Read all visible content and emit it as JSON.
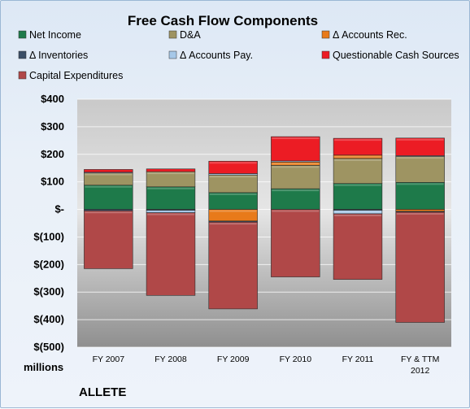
{
  "chart_data": {
    "type": "bar",
    "stacked": true,
    "title": "Free Cash Flow Components",
    "company": "ALLETE",
    "units_label": "millions",
    "categories": [
      "FY 2007",
      "FY 2008",
      "FY 2009",
      "FY 2010",
      "FY 2011",
      "FY & TTM 2012"
    ],
    "ylim": [
      -500,
      400
    ],
    "yticks": [
      400,
      300,
      200,
      100,
      0,
      -100,
      -200,
      -300,
      -400,
      -500
    ],
    "ytick_labels": [
      "$400",
      "$300",
      "$200",
      "$100",
      "$-",
      "$(100)",
      "$(200)",
      "$(300)",
      "$(400)",
      "$(500)"
    ],
    "grid": true,
    "legend_position": "top",
    "series": [
      {
        "name": "Net Income",
        "color": "#1e7a4a",
        "values": [
          88,
          82,
          61,
          75,
          94,
          98
        ]
      },
      {
        "name": "D&A",
        "color": "#9e9462",
        "values": [
          45,
          55,
          64,
          85,
          91,
          95
        ]
      },
      {
        "name": "Δ Accounts Rec.",
        "color": "#e87a1a",
        "values": [
          0,
          0,
          -42,
          12,
          12,
          -7
        ]
      },
      {
        "name": "Δ Inventories",
        "color": "#3b4e66",
        "values": [
          -5,
          -3,
          -4,
          0,
          -3,
          -3
        ]
      },
      {
        "name": "Δ Accounts Pay.",
        "color": "#a6c8e8",
        "values": [
          2,
          -9,
          5,
          4,
          -13,
          2
        ]
      },
      {
        "name": "Questionable Cash Sources",
        "color": "#ec1c24",
        "values": [
          10,
          10,
          45,
          88,
          61,
          64
        ]
      },
      {
        "name": "Capital Expenditures",
        "color": "#b04848",
        "values": [
          -210,
          -300,
          -315,
          -245,
          -238,
          -400
        ]
      }
    ]
  }
}
